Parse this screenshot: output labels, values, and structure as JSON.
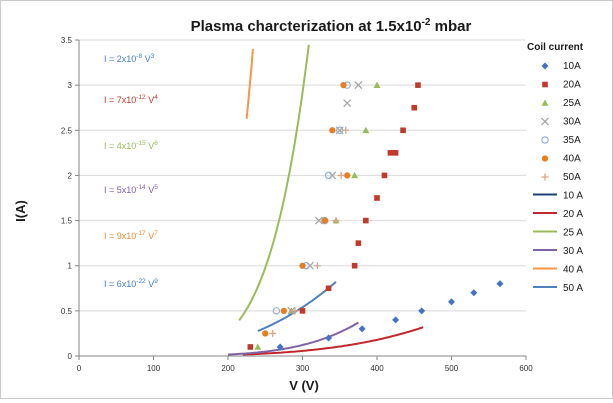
{
  "chart_data": {
    "type": "scatter",
    "title": {
      "main": "Plasma charcterization at 1.5x10",
      "sup": "-2",
      "tail": " mbar"
    },
    "xlabel": "V (V)",
    "ylabel": "I(A)",
    "xlim": [
      0,
      600
    ],
    "ylim": [
      0,
      3.5
    ],
    "xticks": [
      0,
      100,
      200,
      300,
      400,
      500,
      600
    ],
    "yticks": [
      0,
      0.5,
      1,
      1.5,
      2,
      2.5,
      3,
      3.5
    ],
    "ytick_labels": [
      "0",
      "0.5",
      "1",
      "1.5",
      "2",
      "2.5",
      "3",
      "3.5"
    ],
    "grid": "horizontal",
    "legend_title": "Coil current",
    "legend_position": "right",
    "series": [
      {
        "name": "10A",
        "marker": "diamond",
        "color": "#4472C4",
        "x": [
          270,
          335,
          380,
          425,
          460,
          500,
          530,
          565
        ],
        "y": [
          0.1,
          0.2,
          0.3,
          0.4,
          0.5,
          0.6,
          0.7,
          0.8
        ]
      },
      {
        "name": "20A",
        "marker": "square",
        "color": "#C0392B",
        "x": [
          230,
          300,
          335,
          370,
          375,
          385,
          400,
          410,
          418,
          425,
          435,
          450,
          455
        ],
        "y": [
          0.1,
          0.5,
          0.75,
          1.0,
          1.25,
          1.5,
          1.75,
          2.0,
          2.25,
          2.25,
          2.5,
          2.75,
          3.0
        ]
      },
      {
        "name": "25A",
        "marker": "triangle",
        "color": "#9BBB59",
        "x": [
          240,
          285,
          345,
          370,
          385,
          400
        ],
        "y": [
          0.1,
          0.5,
          1.5,
          2.0,
          2.5,
          3.0
        ]
      },
      {
        "name": "30A",
        "marker": "x",
        "color": "#A6A6A6",
        "x": [
          285,
          310,
          322,
          340,
          350,
          360,
          375
        ],
        "y": [
          0.5,
          1.0,
          1.5,
          2.0,
          2.5,
          2.8,
          3.0
        ]
      },
      {
        "name": "35A",
        "marker": "circle-open",
        "color": "#95B3D7",
        "x": [
          265,
          305,
          330,
          335,
          350,
          360
        ],
        "y": [
          0.5,
          1.0,
          1.5,
          2.0,
          2.5,
          3.0
        ]
      },
      {
        "name": "40A",
        "marker": "circle",
        "color": "#E67E22",
        "x": [
          250,
          275,
          300,
          330,
          340,
          360,
          355
        ],
        "y": [
          0.25,
          0.5,
          1.0,
          1.5,
          2.5,
          2.0,
          3.0
        ]
      },
      {
        "name": "50A",
        "marker": "plus",
        "color": "#D9A58A",
        "x": [
          260,
          290,
          320,
          345,
          352,
          358
        ],
        "y": [
          0.25,
          0.5,
          1.0,
          1.5,
          2.0,
          2.5
        ]
      }
    ],
    "fit_lines": [
      {
        "name": "10 A",
        "color": "#1F3E73",
        "coef": 6e-22,
        "power": 9,
        "xmin": 265,
        "xmax": 567
      },
      {
        "name": "20 A",
        "color": "#C0282D",
        "coef": 7e-12,
        "power": 4,
        "xmin": 220,
        "xmax": 462
      },
      {
        "name": "25 A",
        "color": "#9BBB59",
        "coef": 4e-15,
        "power": 6,
        "xmin": 215,
        "xmax": 402
      },
      {
        "name": "30 A",
        "color": "#8064A2",
        "coef": 5e-14,
        "power": 5,
        "xmin": 200,
        "xmax": 375
      },
      {
        "name": "40 A",
        "color": "#F79646",
        "coef": 9e-17,
        "power": 7,
        "xmin": 225,
        "xmax": 360
      },
      {
        "name": "50 A",
        "color": "#4F81BD",
        "coef": 2e-08,
        "power": 3,
        "xmin": 240,
        "xmax": 345
      }
    ],
    "equations": [
      {
        "pre": "I = 2x10",
        "exp": "-8",
        "mid": " V",
        "vexp": "3",
        "color": "#3D7CC9"
      },
      {
        "pre": "I = 7x10",
        "exp": "-12",
        "mid": " V",
        "vexp": "4",
        "color": "#C0392B"
      },
      {
        "pre": "I = 4x10",
        "exp": "-15",
        "mid": " V",
        "vexp": "6",
        "color": "#9BBB59"
      },
      {
        "pre": "I = 5x10",
        "exp": "-14",
        "mid": " V",
        "vexp": "5",
        "color": "#7F5FA8"
      },
      {
        "pre": "I = 9x10",
        "exp": "-17",
        "mid": " V",
        "vexp": "7",
        "color": "#F08A30"
      },
      {
        "pre": "I = 6x10",
        "exp": "-22",
        "mid": " V",
        "vexp": "9",
        "color": "#3D7CC9"
      }
    ]
  }
}
